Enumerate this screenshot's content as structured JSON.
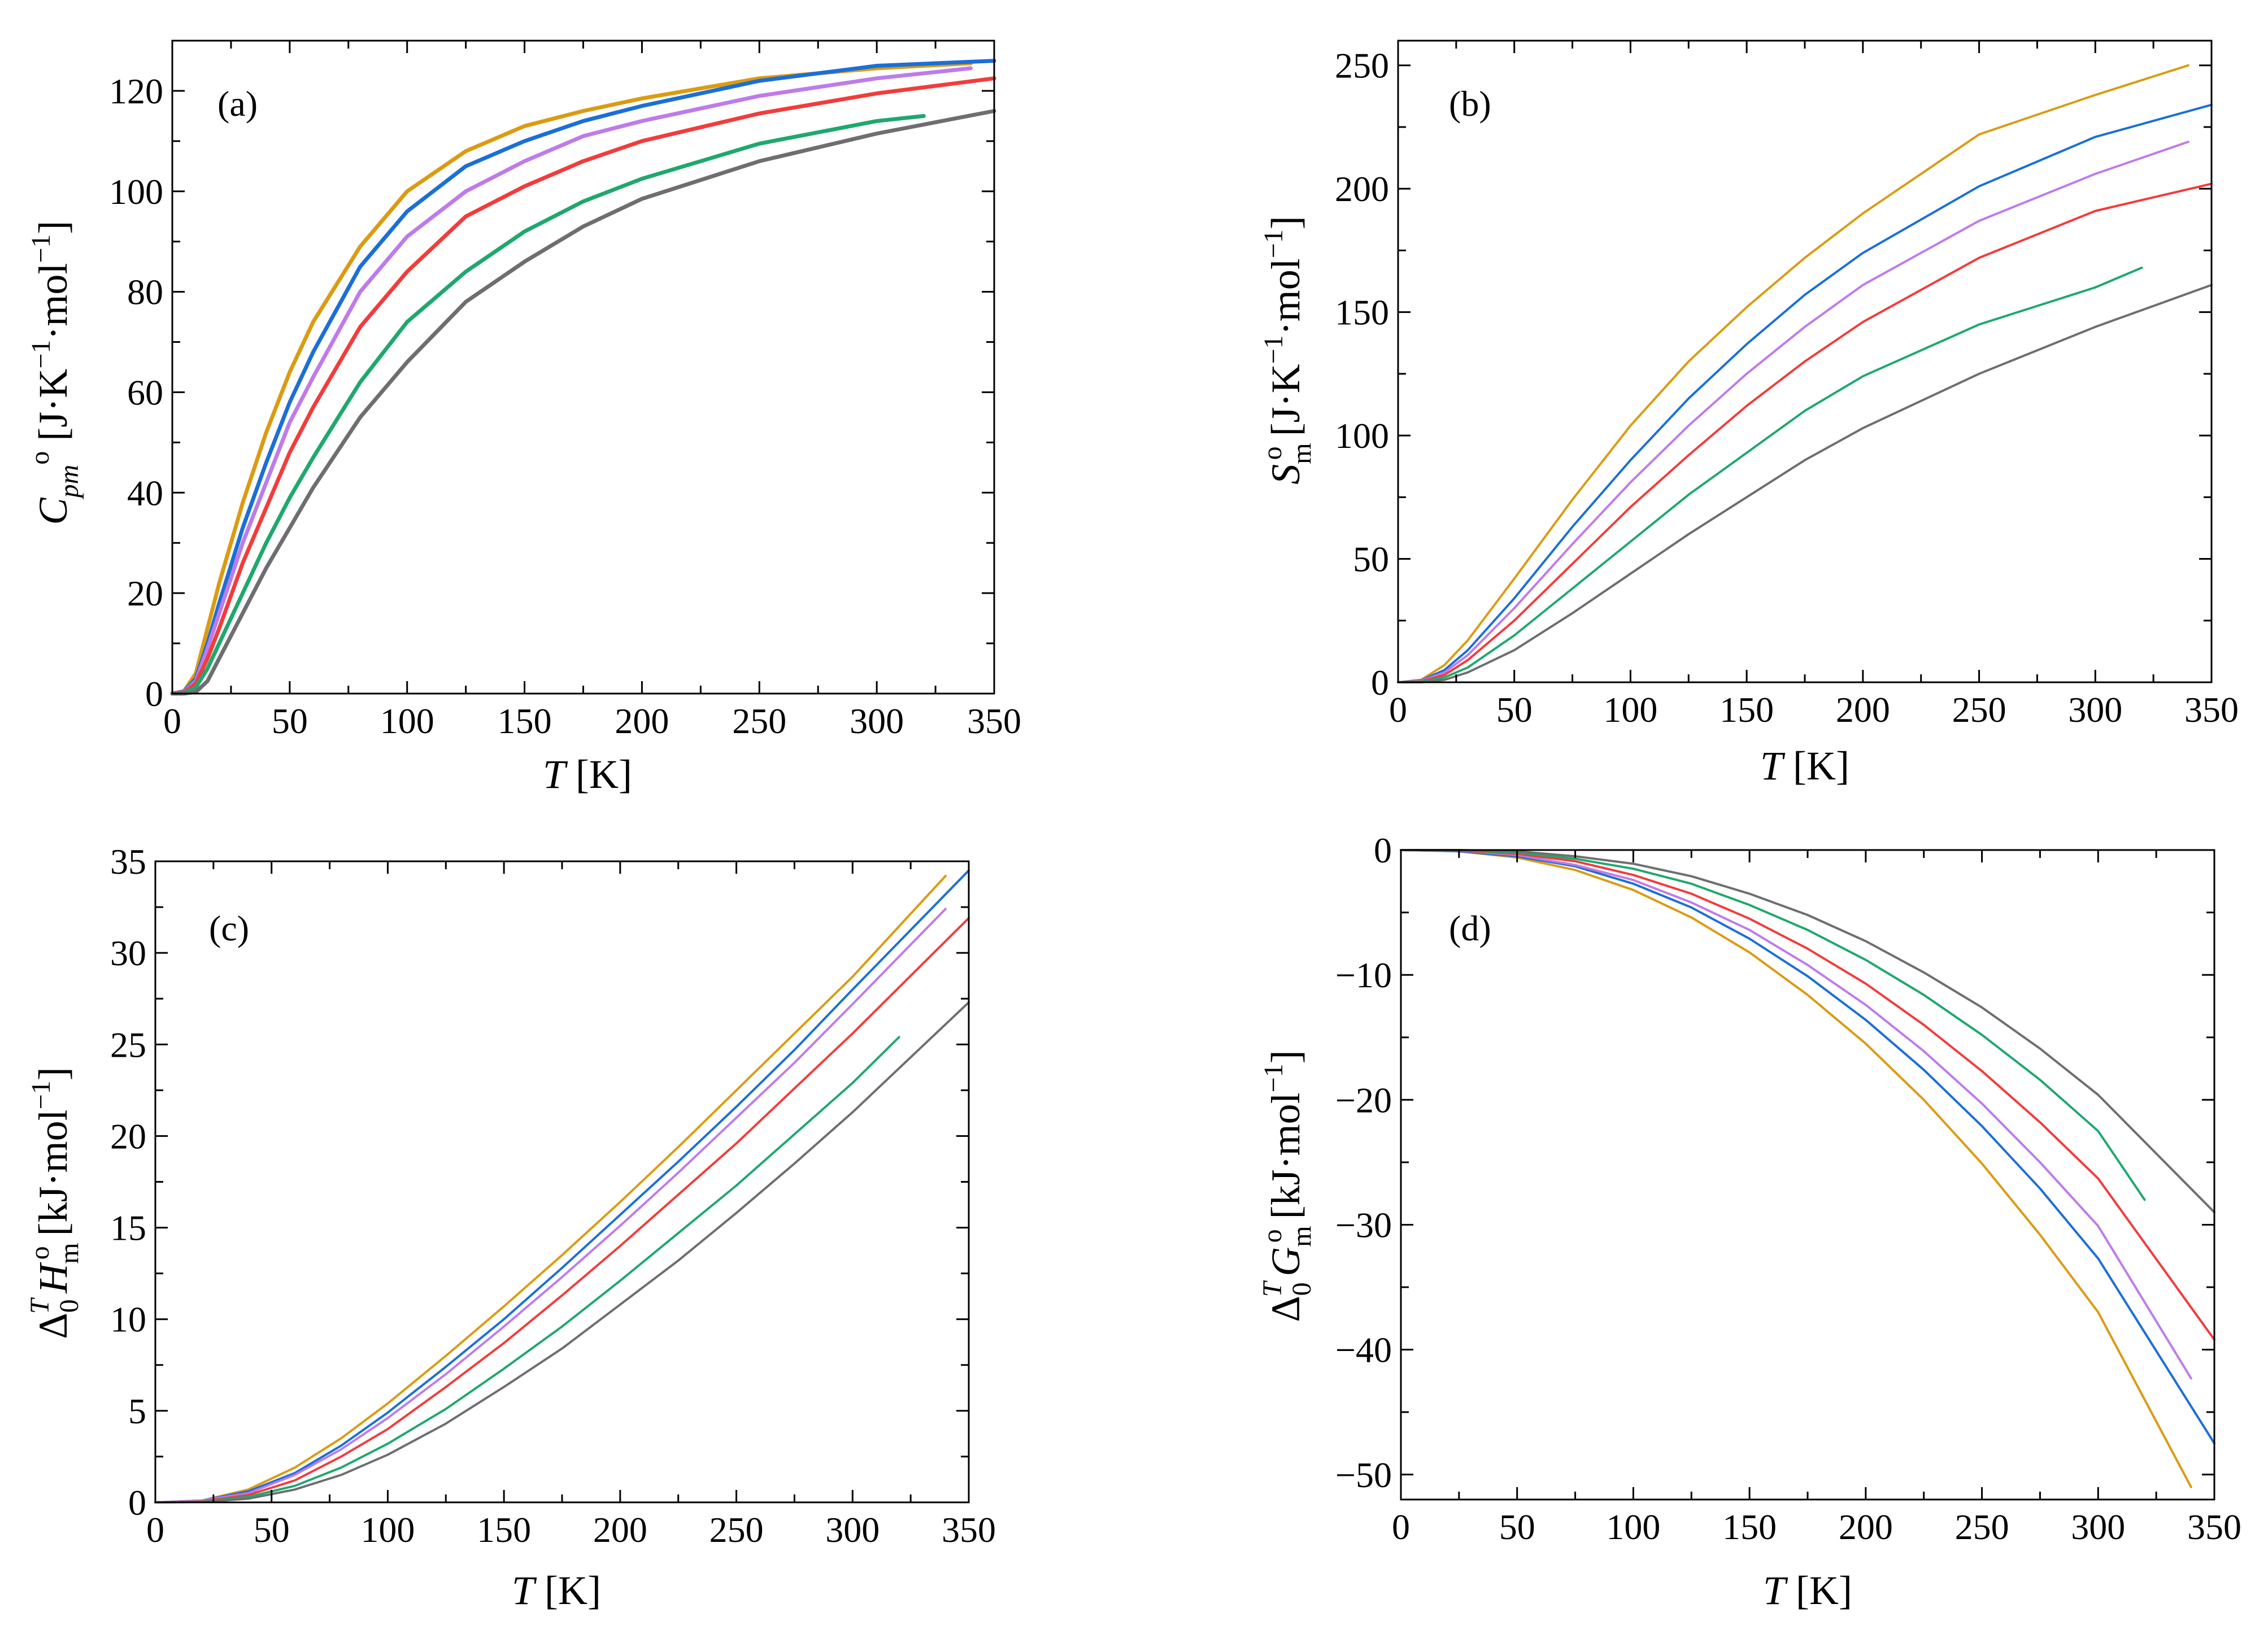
{
  "colors": {
    "orange": "#DB9B12",
    "blue": "#1B6FD6",
    "violet": "#BE7BEA",
    "red": "#F23C3C",
    "green": "#1FA86E",
    "gray": "#6E6E70"
  },
  "chart_data": [
    {
      "id": "a",
      "type": "line",
      "panel_label": "(a)",
      "xlabel": "T [K]",
      "ylabel": "C_pm^o [J·K^−1·mol^−1]",
      "xlim": [
        0,
        350
      ],
      "ylim": [
        0,
        130
      ],
      "xticks": [
        0,
        50,
        100,
        150,
        200,
        250,
        300,
        350
      ],
      "yticks": [
        0,
        20,
        40,
        60,
        80,
        100,
        120
      ],
      "grid": false,
      "series": [
        {
          "color": "orange",
          "x": [
            0,
            5,
            10,
            15,
            20,
            30,
            40,
            50,
            60,
            80,
            100,
            125,
            150,
            175,
            200,
            250,
            300,
            340
          ],
          "y": [
            0,
            0.5,
            4,
            13,
            22,
            38,
            52,
            64,
            74,
            89,
            100,
            108,
            113,
            116,
            118.5,
            122.5,
            124.5,
            125.5
          ]
        },
        {
          "color": "blue",
          "x": [
            0,
            5,
            10,
            15,
            20,
            30,
            40,
            50,
            60,
            80,
            100,
            125,
            150,
            175,
            200,
            250,
            300,
            350
          ],
          "y": [
            0,
            0.4,
            3,
            10,
            18,
            33,
            46,
            58,
            68,
            85,
            96,
            105,
            110,
            114,
            117,
            122,
            125,
            126
          ]
        },
        {
          "color": "violet",
          "x": [
            0,
            5,
            10,
            15,
            20,
            30,
            40,
            50,
            60,
            80,
            100,
            125,
            150,
            175,
            200,
            250,
            300,
            340
          ],
          "y": [
            0,
            0.3,
            2.5,
            9,
            16,
            30,
            42,
            54,
            63,
            80,
            91,
            100,
            106,
            111,
            114,
            119,
            122.5,
            124.5
          ]
        },
        {
          "color": "red",
          "x": [
            0,
            5,
            10,
            15,
            20,
            30,
            40,
            50,
            60,
            80,
            100,
            125,
            150,
            175,
            200,
            250,
            300,
            350
          ],
          "y": [
            0,
            0.2,
            2,
            7,
            13,
            26,
            37,
            48,
            57,
            73,
            84,
            95,
            101,
            106,
            110,
            115.5,
            119.5,
            122.5
          ]
        },
        {
          "color": "green",
          "x": [
            0,
            5,
            10,
            15,
            20,
            30,
            40,
            50,
            60,
            80,
            100,
            125,
            150,
            175,
            200,
            250,
            300,
            320
          ],
          "y": [
            0,
            0.1,
            1.2,
            5,
            10,
            20,
            30,
            39,
            47,
            62,
            74,
            84,
            92,
            98,
            102.5,
            109.5,
            114,
            115
          ]
        },
        {
          "color": "gray",
          "x": [
            0,
            5,
            10,
            15,
            20,
            30,
            40,
            50,
            60,
            80,
            100,
            125,
            150,
            175,
            200,
            250,
            300,
            350
          ],
          "y": [
            0,
            0,
            0.3,
            2.5,
            7,
            16,
            25,
            33,
            41,
            55,
            66,
            78,
            86,
            93,
            98.5,
            106,
            111.5,
            116
          ]
        }
      ]
    },
    {
      "id": "b",
      "type": "line",
      "panel_label": "(b)",
      "xlabel": "T [K]",
      "ylabel": "S_m^o [J·K^−1·mol^−1]",
      "xlim": [
        0,
        350
      ],
      "ylim": [
        0,
        260
      ],
      "xticks": [
        0,
        50,
        100,
        150,
        200,
        250,
        300,
        350
      ],
      "yticks": [
        0,
        50,
        100,
        150,
        200,
        250
      ],
      "grid": false,
      "series": [
        {
          "color": "orange",
          "x": [
            0,
            10,
            20,
            30,
            50,
            75,
            100,
            125,
            150,
            175,
            200,
            250,
            300,
            340
          ],
          "y": [
            0,
            1,
            7,
            17,
            42,
            74,
            104,
            130,
            152,
            172,
            190,
            222,
            238,
            250
          ]
        },
        {
          "color": "blue",
          "x": [
            0,
            10,
            20,
            30,
            50,
            75,
            100,
            125,
            150,
            175,
            200,
            250,
            300,
            350
          ],
          "y": [
            0,
            0.8,
            5,
            13,
            34,
            63,
            90,
            115,
            137,
            157,
            174,
            201,
            221,
            234
          ]
        },
        {
          "color": "violet",
          "x": [
            0,
            10,
            20,
            30,
            50,
            75,
            100,
            125,
            150,
            175,
            200,
            250,
            300,
            340
          ],
          "y": [
            0,
            0.6,
            4,
            11,
            30,
            56,
            81,
            104,
            125,
            144,
            161,
            187,
            206,
            219
          ]
        },
        {
          "color": "red",
          "x": [
            0,
            10,
            20,
            30,
            50,
            75,
            100,
            125,
            150,
            175,
            200,
            250,
            300,
            350
          ],
          "y": [
            0,
            0.4,
            3,
            9,
            25,
            48,
            71,
            92,
            112,
            130,
            146,
            172,
            191,
            202
          ]
        },
        {
          "color": "green",
          "x": [
            0,
            10,
            20,
            30,
            50,
            75,
            100,
            125,
            150,
            175,
            200,
            250,
            300,
            320
          ],
          "y": [
            0,
            0.2,
            2,
            6,
            19,
            38,
            57,
            76,
            93,
            110,
            124,
            145,
            160,
            168
          ]
        },
        {
          "color": "gray",
          "x": [
            0,
            10,
            20,
            30,
            50,
            75,
            100,
            125,
            150,
            175,
            200,
            250,
            300,
            350
          ],
          "y": [
            0,
            0,
            1,
            4,
            13,
            28,
            44,
            60,
            75,
            90,
            103,
            125,
            144,
            161
          ]
        }
      ]
    },
    {
      "id": "c",
      "type": "line",
      "panel_label": "(c)",
      "xlabel": "T [K]",
      "ylabel": "Δ_0^T H_m^o [kJ·mol^−1]",
      "xlim": [
        0,
        350
      ],
      "ylim": [
        0,
        35
      ],
      "xticks": [
        0,
        50,
        100,
        150,
        200,
        250,
        300,
        350
      ],
      "yticks": [
        0,
        5,
        10,
        15,
        20,
        25,
        30,
        35
      ],
      "grid": false,
      "series": [
        {
          "color": "orange",
          "x": [
            0,
            20,
            40,
            60,
            80,
            100,
            125,
            150,
            175,
            200,
            225,
            250,
            275,
            300,
            340
          ],
          "y": [
            0,
            0.1,
            0.7,
            1.9,
            3.5,
            5.4,
            8.0,
            10.7,
            13.5,
            16.4,
            19.4,
            22.5,
            25.6,
            28.7,
            34.2
          ]
        },
        {
          "color": "blue",
          "x": [
            0,
            20,
            40,
            60,
            80,
            100,
            125,
            150,
            175,
            200,
            225,
            250,
            275,
            300,
            350
          ],
          "y": [
            0,
            0.1,
            0.6,
            1.6,
            3.1,
            4.9,
            7.4,
            10.0,
            12.8,
            15.7,
            18.6,
            21.6,
            24.7,
            28.0,
            34.5
          ]
        },
        {
          "color": "violet",
          "x": [
            0,
            20,
            40,
            60,
            80,
            100,
            125,
            150,
            175,
            200,
            225,
            250,
            275,
            300,
            340
          ],
          "y": [
            0,
            0.1,
            0.5,
            1.5,
            2.9,
            4.6,
            7.0,
            9.6,
            12.3,
            15.1,
            18.0,
            21.0,
            24.0,
            27.2,
            32.4
          ]
        },
        {
          "color": "red",
          "x": [
            0,
            20,
            40,
            60,
            80,
            100,
            125,
            150,
            175,
            200,
            225,
            250,
            275,
            300,
            350
          ],
          "y": [
            0,
            0.05,
            0.4,
            1.2,
            2.5,
            4.0,
            6.3,
            8.7,
            11.3,
            14.0,
            16.8,
            19.6,
            22.6,
            25.6,
            31.9
          ]
        },
        {
          "color": "green",
          "x": [
            0,
            20,
            40,
            60,
            80,
            100,
            125,
            150,
            175,
            200,
            225,
            250,
            275,
            300,
            320
          ],
          "y": [
            0,
            0.03,
            0.3,
            0.9,
            1.9,
            3.2,
            5.1,
            7.3,
            9.6,
            12.1,
            14.7,
            17.3,
            20.1,
            22.9,
            25.4
          ]
        },
        {
          "color": "gray",
          "x": [
            0,
            20,
            40,
            60,
            80,
            100,
            125,
            150,
            175,
            200,
            225,
            250,
            275,
            300,
            350
          ],
          "y": [
            0,
            0.02,
            0.2,
            0.7,
            1.5,
            2.6,
            4.3,
            6.3,
            8.4,
            10.8,
            13.2,
            15.8,
            18.5,
            21.3,
            27.3
          ]
        }
      ]
    },
    {
      "id": "d",
      "type": "line",
      "panel_label": "(d)",
      "xlabel": "T [K]",
      "ylabel": "Δ_0^T G_m^o [kJ·mol^−1]",
      "xlim": [
        0,
        350
      ],
      "ylim": [
        -52,
        0
      ],
      "xticks": [
        0,
        50,
        100,
        150,
        200,
        250,
        300,
        350
      ],
      "yticks": [
        0,
        -10,
        -20,
        -30,
        -40,
        -50
      ],
      "ytick_labels": [
        "0",
        "−10",
        "−20",
        "−30",
        "−40",
        "−50"
      ],
      "grid": false,
      "series": [
        {
          "color": "orange",
          "x": [
            0,
            25,
            50,
            75,
            100,
            125,
            150,
            175,
            200,
            225,
            250,
            275,
            300,
            340
          ],
          "y": [
            0,
            -0.1,
            -0.6,
            -1.6,
            -3.2,
            -5.4,
            -8.2,
            -11.6,
            -15.5,
            -20.0,
            -25.1,
            -30.8,
            -37.0,
            -51.0
          ]
        },
        {
          "color": "blue",
          "x": [
            0,
            25,
            50,
            75,
            100,
            125,
            150,
            175,
            200,
            225,
            250,
            275,
            300,
            350
          ],
          "y": [
            0,
            -0.1,
            -0.5,
            -1.3,
            -2.7,
            -4.6,
            -7.1,
            -10.1,
            -13.6,
            -17.6,
            -22.1,
            -27.1,
            -32.7,
            -47.5
          ]
        },
        {
          "color": "violet",
          "x": [
            0,
            25,
            50,
            75,
            100,
            125,
            150,
            175,
            200,
            225,
            250,
            275,
            300,
            340
          ],
          "y": [
            0,
            -0.05,
            -0.4,
            -1.2,
            -2.4,
            -4.2,
            -6.4,
            -9.2,
            -12.4,
            -16.1,
            -20.3,
            -25.0,
            -30.1,
            -42.3
          ]
        },
        {
          "color": "red",
          "x": [
            0,
            25,
            50,
            75,
            100,
            125,
            150,
            175,
            200,
            225,
            250,
            275,
            300,
            350
          ],
          "y": [
            0,
            -0.05,
            -0.3,
            -0.9,
            -2.0,
            -3.5,
            -5.5,
            -7.9,
            -10.7,
            -14.0,
            -17.7,
            -21.8,
            -26.3,
            -39.2
          ]
        },
        {
          "color": "green",
          "x": [
            0,
            25,
            50,
            75,
            100,
            125,
            150,
            175,
            200,
            225,
            250,
            275,
            300,
            320
          ],
          "y": [
            0,
            -0.02,
            -0.2,
            -0.7,
            -1.5,
            -2.7,
            -4.4,
            -6.4,
            -8.8,
            -11.6,
            -14.8,
            -18.4,
            -22.5,
            -28.0
          ]
        },
        {
          "color": "gray",
          "x": [
            0,
            25,
            50,
            75,
            100,
            125,
            150,
            175,
            200,
            225,
            250,
            275,
            300,
            350
          ],
          "y": [
            0,
            0,
            -0.1,
            -0.5,
            -1.1,
            -2.1,
            -3.5,
            -5.2,
            -7.3,
            -9.8,
            -12.6,
            -15.9,
            -19.6,
            -29.0
          ]
        }
      ]
    }
  ]
}
